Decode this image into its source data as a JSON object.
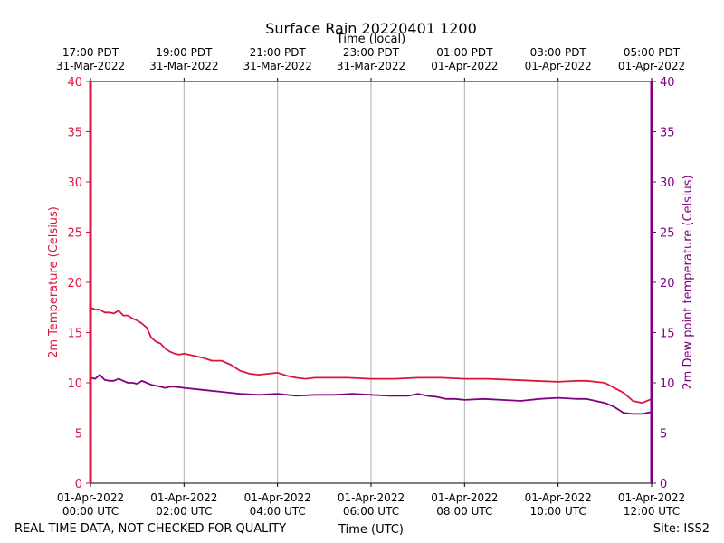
{
  "chart_data": {
    "type": "line",
    "title": "Surface Rain 20220401 1200",
    "top_axis_label": "Time (local)",
    "xlabel": "Time (UTC)",
    "ylabel_left": "2m Temperature (Celsius)",
    "ylabel_right": "2m Dew point temperature (Celsius)",
    "xlim": [
      0,
      12
    ],
    "ylim": [
      0,
      40
    ],
    "y_ticks": [
      "0",
      "5",
      "10",
      "15",
      "20",
      "25",
      "30",
      "35",
      "40"
    ],
    "grid": "vertical",
    "bottom_ticks": [
      {
        "line1": "01-Apr-2022",
        "line2": "00:00 UTC"
      },
      {
        "line1": "01-Apr-2022",
        "line2": "02:00 UTC"
      },
      {
        "line1": "01-Apr-2022",
        "line2": "04:00 UTC"
      },
      {
        "line1": "01-Apr-2022",
        "line2": "06:00 UTC"
      },
      {
        "line1": "01-Apr-2022",
        "line2": "08:00 UTC"
      },
      {
        "line1": "01-Apr-2022",
        "line2": "10:00 UTC"
      },
      {
        "line1": "01-Apr-2022",
        "line2": "12:00 UTC"
      }
    ],
    "top_ticks": [
      {
        "line1": "17:00 PDT",
        "line2": "31-Mar-2022"
      },
      {
        "line1": "19:00 PDT",
        "line2": "31-Mar-2022"
      },
      {
        "line1": "21:00 PDT",
        "line2": "31-Mar-2022"
      },
      {
        "line1": "23:00 PDT",
        "line2": "31-Mar-2022"
      },
      {
        "line1": "01:00 PDT",
        "line2": "01-Apr-2022"
      },
      {
        "line1": "03:00 PDT",
        "line2": "01-Apr-2022"
      },
      {
        "line1": "05:00 PDT",
        "line2": "01-Apr-2022"
      }
    ],
    "series": [
      {
        "name": "2m Temperature",
        "color": "#dc143c",
        "x": [
          0,
          0.1,
          0.2,
          0.3,
          0.4,
          0.5,
          0.6,
          0.7,
          0.8,
          0.9,
          1.0,
          1.1,
          1.2,
          1.3,
          1.4,
          1.5,
          1.6,
          1.7,
          1.8,
          1.9,
          2.0,
          2.2,
          2.4,
          2.6,
          2.8,
          3.0,
          3.2,
          3.4,
          3.6,
          3.8,
          4.0,
          4.2,
          4.4,
          4.6,
          4.8,
          5.0,
          5.5,
          6.0,
          6.5,
          7.0,
          7.5,
          8.0,
          8.5,
          9.0,
          9.5,
          10.0,
          10.4,
          10.6,
          10.8,
          11.0,
          11.2,
          11.4,
          11.6,
          11.8,
          12.0
        ],
        "values": [
          17.5,
          17.3,
          17.3,
          17.0,
          17.0,
          16.9,
          17.2,
          16.7,
          16.7,
          16.4,
          16.2,
          15.9,
          15.5,
          14.5,
          14.1,
          13.9,
          13.4,
          13.1,
          12.9,
          12.8,
          12.9,
          12.7,
          12.5,
          12.2,
          12.2,
          11.8,
          11.2,
          10.9,
          10.8,
          10.9,
          11.0,
          10.7,
          10.5,
          10.4,
          10.5,
          10.5,
          10.5,
          10.4,
          10.4,
          10.5,
          10.5,
          10.4,
          10.4,
          10.3,
          10.2,
          10.1,
          10.2,
          10.2,
          10.1,
          10.0,
          9.5,
          9.0,
          8.2,
          8.0,
          8.4
        ]
      },
      {
        "name": "2m Dew point temperature",
        "color": "#800080",
        "x": [
          0,
          0.1,
          0.2,
          0.3,
          0.4,
          0.5,
          0.6,
          0.7,
          0.8,
          0.9,
          1.0,
          1.1,
          1.2,
          1.3,
          1.4,
          1.5,
          1.6,
          1.7,
          1.8,
          2.0,
          2.4,
          2.8,
          3.2,
          3.6,
          4.0,
          4.4,
          4.8,
          5.2,
          5.6,
          6.0,
          6.4,
          6.8,
          7.0,
          7.2,
          7.4,
          7.6,
          7.8,
          8.0,
          8.4,
          8.8,
          9.2,
          9.6,
          10.0,
          10.4,
          10.6,
          10.8,
          11.0,
          11.2,
          11.4,
          11.6,
          11.8,
          12.0
        ],
        "values": [
          10.5,
          10.4,
          10.8,
          10.3,
          10.2,
          10.2,
          10.4,
          10.2,
          10.0,
          10.0,
          9.9,
          10.2,
          10.0,
          9.8,
          9.7,
          9.6,
          9.5,
          9.6,
          9.6,
          9.5,
          9.3,
          9.1,
          8.9,
          8.8,
          8.9,
          8.7,
          8.8,
          8.8,
          8.9,
          8.8,
          8.7,
          8.7,
          8.9,
          8.7,
          8.6,
          8.4,
          8.4,
          8.3,
          8.4,
          8.3,
          8.2,
          8.4,
          8.5,
          8.4,
          8.4,
          8.2,
          8.0,
          7.6,
          7.0,
          6.9,
          6.9,
          7.1
        ]
      }
    ]
  },
  "footer": {
    "disclaimer": "REAL TIME DATA, NOT CHECKED FOR QUALITY",
    "site": "Site: ISS2"
  },
  "colors": {
    "temperature": "#dc143c",
    "dewpoint": "#800080",
    "grid": "#b0b0b0",
    "axis": "#000000"
  }
}
